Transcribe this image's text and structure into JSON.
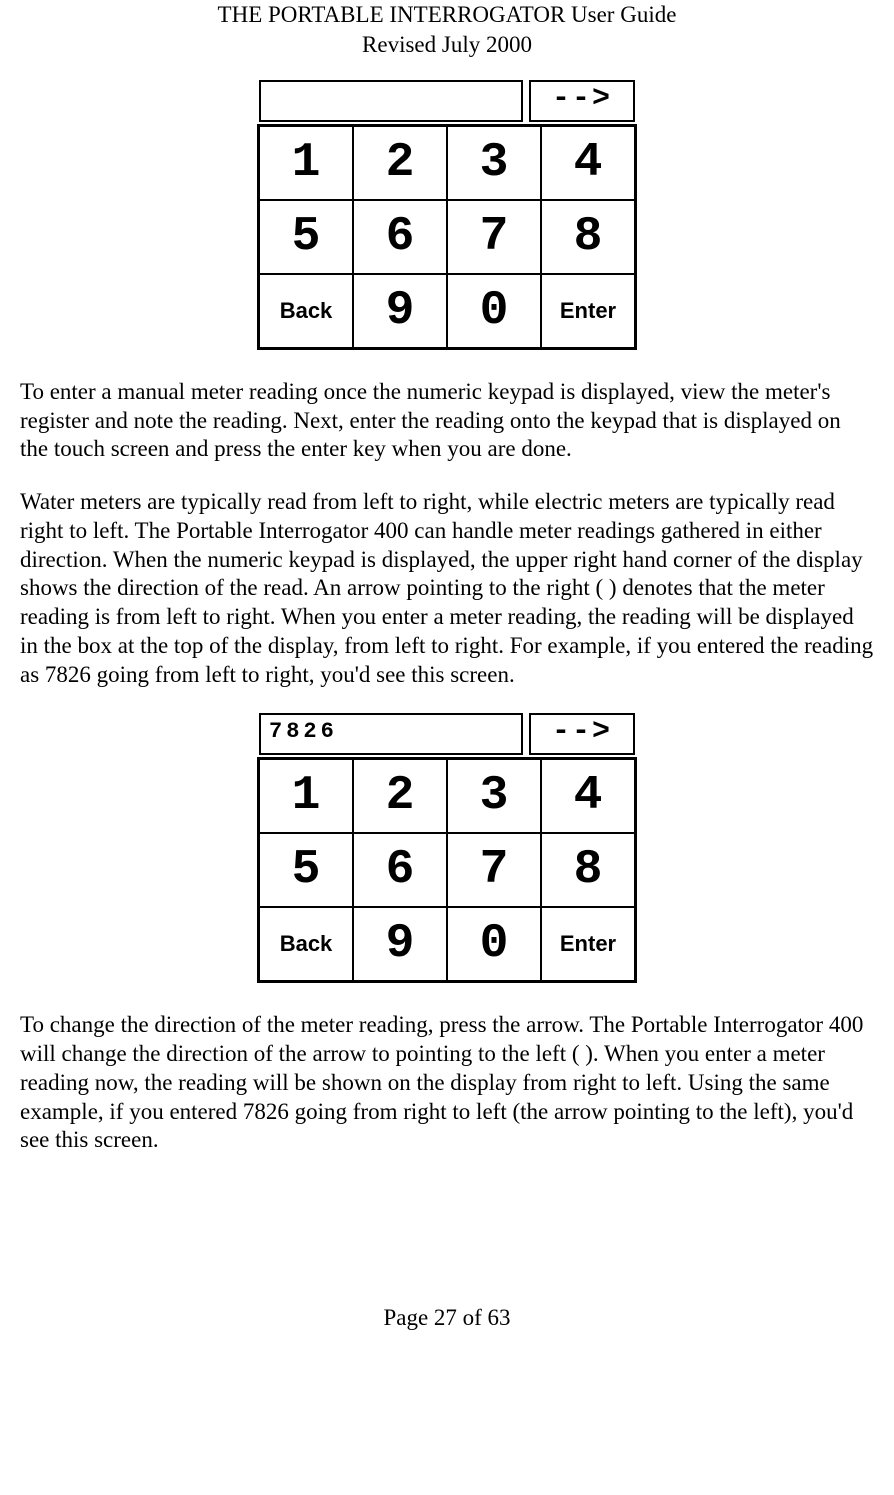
{
  "header": {
    "title": "THE PORTABLE INTERROGATOR User Guide",
    "subtitle": "Revised July 2000"
  },
  "keypad1": {
    "display_value": "",
    "arrow": "-->",
    "keys": [
      "1",
      "2",
      "3",
      "4",
      "5",
      "6",
      "7",
      "8",
      "Back",
      "9",
      "0",
      "Enter"
    ]
  },
  "para1": "To enter a manual meter reading once the numeric keypad is displayed, view the meter's register and note the reading.  Next, enter the reading onto the keypad that is displayed on the touch screen and press the enter key when you are done.",
  "para2": "Water meters are typically read from left to right, while electric meters are typically read right to left.  The Portable Interrogator 400 can handle meter readings gathered in either direction.  When the numeric keypad is displayed, the upper right hand corner of the display shows the direction of the read.  An arrow pointing to the right (  ) denotes that the meter reading is from left to right.  When you enter a meter reading, the reading will be displayed in the box at the top of the display, from left to right.  For example, if you entered the reading as 7826 going from left to right, you'd see this screen.",
  "keypad2": {
    "display_value": "7826",
    "arrow": "-->",
    "keys": [
      "1",
      "2",
      "3",
      "4",
      "5",
      "6",
      "7",
      "8",
      "Back",
      "9",
      "0",
      "Enter"
    ]
  },
  "para3": "To change the direction of the meter reading, press the arrow.  The Portable Interrogator 400 will change the direction of the arrow to pointing to the left (  ).  When you enter a meter reading now, the reading will be shown on the display from right to left.  Using the same example, if you entered 7826 going from right to left (the arrow pointing to the left), you'd see this screen.",
  "footer": "Page 27 of 63"
}
